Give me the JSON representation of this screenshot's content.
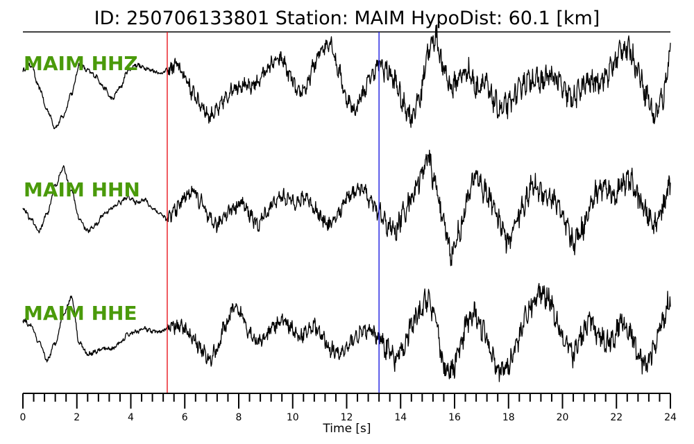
{
  "chart_data": {
    "type": "line",
    "title": "ID: 250706133801   Station: MAIM   HypoDist:    60.1 [km]",
    "xlabel": "Time [s]",
    "xlim": [
      0,
      24
    ],
    "x_ticks": [
      0,
      2,
      4,
      6,
      8,
      10,
      12,
      14,
      16,
      18,
      20,
      22,
      24
    ],
    "x_tick_labels": [
      "0",
      "2",
      "4",
      "6",
      "8",
      "10",
      "12",
      "14",
      "16",
      "18",
      "20",
      "22",
      "24"
    ],
    "minor_tick_step": 0.4,
    "label_color": "#4a9a0a",
    "markers": [
      {
        "time": 5.35,
        "color": "#e8141c"
      },
      {
        "time": 13.2,
        "color": "#1c1ce0"
      }
    ],
    "series": [
      {
        "name": "MAIM HHZ",
        "times": [
          0,
          0.3,
          0.6,
          0.9,
          1.2,
          1.5,
          1.8,
          2.1,
          2.4,
          2.7,
          3.0,
          3.3,
          3.6,
          3.9,
          4.2,
          4.5,
          4.8,
          5.1,
          5.35,
          5.7,
          6.0,
          6.3,
          6.6,
          6.9,
          7.2,
          7.5,
          7.8,
          8.1,
          8.4,
          8.7,
          9.0,
          9.3,
          9.6,
          9.9,
          10.2,
          10.5,
          10.8,
          11.1,
          11.4,
          11.7,
          12.0,
          12.3,
          12.6,
          12.9,
          13.2,
          13.5,
          13.8,
          14.1,
          14.4,
          14.7,
          15.0,
          15.3,
          15.6,
          15.9,
          16.2,
          16.5,
          16.8,
          17.1,
          17.4,
          17.7,
          18.0,
          18.3,
          18.6,
          18.9,
          19.2,
          19.5,
          19.8,
          20.1,
          20.4,
          20.7,
          21.0,
          21.3,
          21.6,
          21.9,
          22.2,
          22.5,
          22.8,
          23.1,
          23.4,
          23.7,
          24.0
        ],
        "values": [
          0.2,
          0.3,
          -0.1,
          -0.5,
          -0.8,
          -0.6,
          -0.2,
          0.3,
          0.2,
          0.1,
          -0.1,
          -0.3,
          -0.1,
          0.2,
          0.3,
          0.25,
          0.2,
          0.15,
          0.2,
          0.3,
          0.1,
          -0.2,
          -0.4,
          -0.6,
          -0.5,
          -0.3,
          -0.1,
          -0.05,
          -0.1,
          0.0,
          0.2,
          0.35,
          0.4,
          0.1,
          -0.2,
          -0.1,
          0.3,
          0.6,
          0.7,
          0.2,
          -0.3,
          -0.5,
          -0.2,
          0.1,
          0.3,
          0.2,
          0.0,
          -0.4,
          -0.6,
          -0.3,
          0.5,
          0.8,
          0.2,
          -0.1,
          0.1,
          0.2,
          -0.1,
          0.0,
          -0.3,
          -0.5,
          -0.4,
          -0.2,
          0.0,
          0.05,
          0.0,
          0.1,
          0.05,
          -0.2,
          -0.3,
          -0.1,
          0.0,
          0.0,
          0.1,
          0.3,
          0.6,
          0.55,
          0.2,
          -0.2,
          -0.6,
          -0.3,
          0.5
        ]
      },
      {
        "name": "MAIM HHN",
        "times": [
          0,
          0.3,
          0.6,
          0.9,
          1.2,
          1.5,
          1.8,
          2.1,
          2.4,
          2.7,
          3.0,
          3.3,
          3.6,
          3.9,
          4.2,
          4.5,
          4.8,
          5.1,
          5.35,
          5.7,
          6.0,
          6.3,
          6.6,
          6.9,
          7.2,
          7.5,
          7.8,
          8.1,
          8.4,
          8.7,
          9.0,
          9.3,
          9.6,
          9.9,
          10.2,
          10.5,
          10.8,
          11.1,
          11.4,
          11.7,
          12.0,
          12.3,
          12.6,
          12.9,
          13.2,
          13.5,
          13.8,
          14.1,
          14.4,
          14.7,
          15.0,
          15.3,
          15.6,
          15.9,
          16.2,
          16.5,
          16.8,
          17.1,
          17.4,
          17.7,
          18.0,
          18.3,
          18.6,
          18.9,
          19.2,
          19.5,
          19.8,
          20.1,
          20.4,
          20.7,
          21.0,
          21.3,
          21.6,
          21.9,
          22.2,
          22.5,
          22.8,
          23.1,
          23.4,
          23.7,
          24.0
        ],
        "values": [
          0.0,
          -0.2,
          -0.4,
          -0.1,
          0.4,
          0.7,
          0.3,
          -0.2,
          -0.4,
          -0.3,
          -0.1,
          0.0,
          0.1,
          0.2,
          0.1,
          0.15,
          0.0,
          -0.1,
          -0.2,
          0.0,
          0.2,
          0.3,
          0.1,
          -0.2,
          -0.3,
          -0.1,
          0.0,
          0.1,
          -0.1,
          -0.3,
          -0.1,
          0.1,
          0.2,
          0.15,
          0.1,
          0.2,
          0.0,
          -0.2,
          -0.3,
          -0.1,
          0.2,
          0.3,
          0.35,
          0.1,
          -0.1,
          -0.3,
          -0.4,
          -0.1,
          0.2,
          0.5,
          0.9,
          0.4,
          -0.3,
          -0.8,
          -0.4,
          0.2,
          0.6,
          0.3,
          0.1,
          -0.3,
          -0.6,
          -0.2,
          0.1,
          0.4,
          0.3,
          0.2,
          0.1,
          -0.3,
          -0.6,
          -0.4,
          0.0,
          0.3,
          0.4,
          0.2,
          0.4,
          0.5,
          0.2,
          -0.1,
          -0.3,
          0.0,
          0.4
        ]
      },
      {
        "name": "MAIM HHE",
        "times": [
          0,
          0.3,
          0.6,
          0.9,
          1.2,
          1.5,
          1.8,
          2.1,
          2.4,
          2.7,
          3.0,
          3.3,
          3.6,
          3.9,
          4.2,
          4.5,
          4.8,
          5.1,
          5.35,
          5.7,
          6.0,
          6.3,
          6.6,
          6.9,
          7.2,
          7.5,
          7.8,
          8.1,
          8.4,
          8.7,
          9.0,
          9.3,
          9.6,
          9.9,
          10.2,
          10.5,
          10.8,
          11.1,
          11.4,
          11.7,
          12.0,
          12.3,
          12.6,
          12.9,
          13.2,
          13.5,
          13.8,
          14.1,
          14.4,
          14.7,
          15.0,
          15.3,
          15.6,
          15.9,
          16.2,
          16.5,
          16.8,
          17.1,
          17.4,
          17.7,
          18.0,
          18.3,
          18.6,
          18.9,
          19.2,
          19.5,
          19.8,
          20.1,
          20.4,
          20.7,
          21.0,
          21.3,
          21.6,
          21.9,
          22.2,
          22.5,
          22.8,
          23.1,
          23.4,
          23.7,
          24.0
        ],
        "values": [
          0.2,
          0.1,
          -0.2,
          -0.5,
          -0.2,
          0.3,
          0.6,
          -0.2,
          -0.4,
          -0.35,
          -0.3,
          -0.3,
          -0.2,
          -0.05,
          0.0,
          0.05,
          0.0,
          0.0,
          0.05,
          0.1,
          0.05,
          -0.1,
          -0.3,
          -0.5,
          -0.3,
          0.1,
          0.4,
          0.3,
          0.0,
          -0.2,
          -0.1,
          0.1,
          0.2,
          0.1,
          -0.1,
          0.0,
          0.1,
          -0.1,
          -0.3,
          -0.4,
          -0.3,
          -0.1,
          0.0,
          0.0,
          -0.1,
          -0.3,
          -0.5,
          -0.3,
          0.1,
          0.3,
          0.6,
          0.2,
          -0.6,
          -0.7,
          -0.3,
          0.2,
          0.3,
          0.0,
          -0.4,
          -0.7,
          -0.6,
          -0.2,
          0.2,
          0.5,
          0.7,
          0.6,
          0.2,
          -0.2,
          -0.4,
          -0.1,
          0.2,
          0.0,
          -0.2,
          -0.1,
          0.2,
          0.0,
          -0.4,
          -0.6,
          -0.3,
          0.2,
          0.6
        ]
      }
    ]
  }
}
